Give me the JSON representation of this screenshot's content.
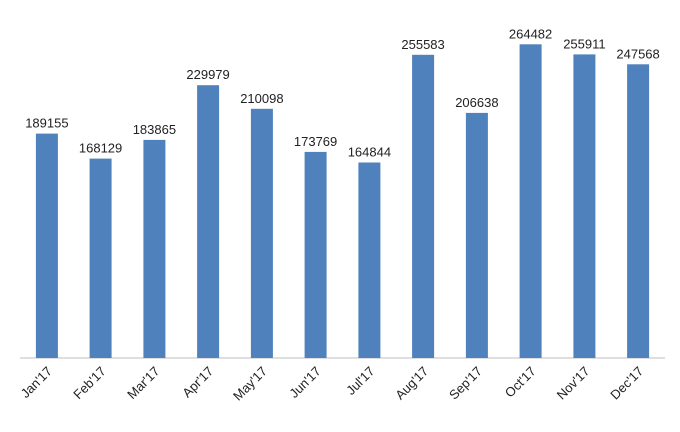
{
  "chart_data": {
    "type": "bar",
    "title": "",
    "xlabel": "",
    "ylabel": "",
    "categories": [
      "Jan'17",
      "Feb'17",
      "Mar'17",
      "Apr'17",
      "May'17",
      "Jun'17",
      "Jul'17",
      "Aug'17",
      "Sep'17",
      "Oct'17",
      "Nov'17",
      "Dec'17"
    ],
    "values": [
      189155,
      168129,
      183865,
      229979,
      210098,
      173769,
      164844,
      255583,
      206638,
      264482,
      255911,
      247568
    ],
    "value_labels": [
      "189155",
      "168129",
      "183865",
      "229979",
      "210098",
      "173769",
      "164844",
      "255583",
      "206638",
      "264482",
      "255911",
      "247568"
    ],
    "ylim": [
      0,
      290000
    ],
    "grid": false,
    "legend": "none",
    "colors": {
      "bar": "#4f81bd",
      "axis": "#bfbfbf"
    }
  }
}
